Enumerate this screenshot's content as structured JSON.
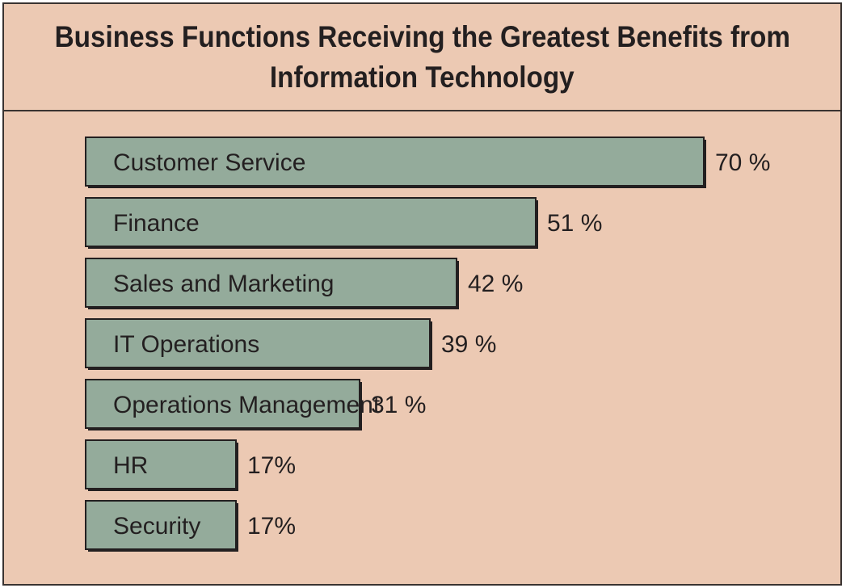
{
  "chart_data": {
    "type": "bar",
    "orientation": "horizontal",
    "title_lines": [
      "Business Functions Receiving the Greatest Benefits from",
      "Information Technology"
    ],
    "categories": [
      "Customer Service",
      "Finance",
      "Sales and Marketing",
      "IT Operations",
      "Operations Management",
      "HR",
      "Security"
    ],
    "values": [
      70,
      51,
      42,
      39,
      31,
      17,
      17
    ],
    "value_labels": [
      "70 %",
      "51 %",
      "42 %",
      "39 %",
      "31 %",
      "17%",
      "17%"
    ],
    "unit": "%",
    "xlim": [
      0,
      70
    ],
    "grid": false,
    "legend": "none",
    "colors": {
      "bar_fill": "#94ab9b",
      "bar_stroke": "#231f20",
      "background": "#ecc9b3",
      "text": "#231f20"
    }
  }
}
